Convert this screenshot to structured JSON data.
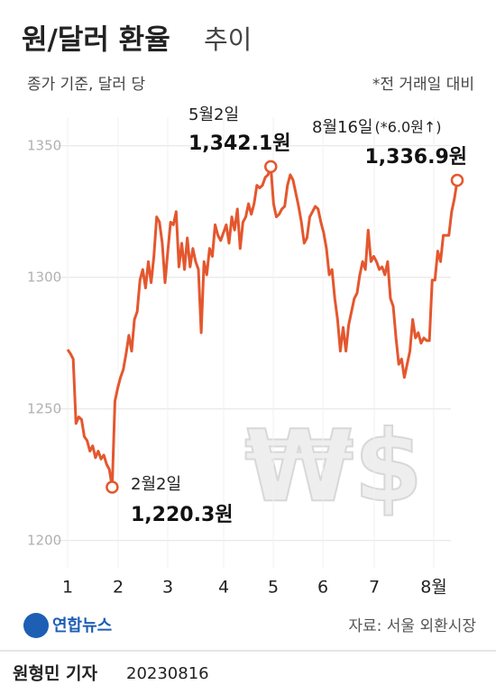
{
  "chart_data": {
    "type": "line",
    "title": "원/달러 환율",
    "title_suffix": "추이",
    "subtitle": "종가 기준, 달러 당",
    "note": "*전 거래일 대비",
    "x_labels": [
      "1",
      "2",
      "3",
      "4",
      "5",
      "6",
      "7",
      "8월"
    ],
    "series": [
      {
        "color": "#e4572e",
        "values": [
          1272.6,
          1271,
          1269,
          1244.5,
          1247,
          1246,
          1239.5,
          1238,
          1234,
          1236,
          1231.5,
          1234,
          1231,
          1232.5,
          1229,
          1227,
          1220.3,
          1253,
          1258,
          1262,
          1265,
          1271,
          1278,
          1272,
          1284,
          1287,
          1299,
          1303,
          1296,
          1306,
          1298,
          1308,
          1323,
          1321,
          1313,
          1298,
          1310,
          1321,
          1320,
          1325,
          1304,
          1313,
          1303,
          1315,
          1304,
          1311,
          1306,
          1303,
          1279,
          1306,
          1301,
          1311,
          1308,
          1320,
          1316,
          1314,
          1317,
          1320,
          1313,
          1323,
          1318,
          1326,
          1311,
          1321,
          1323,
          1328,
          1324,
          1328,
          1335,
          1334,
          1335,
          1338,
          1339,
          1342.1,
          1328,
          1323,
          1324,
          1326,
          1327,
          1335,
          1339,
          1337,
          1332,
          1327,
          1321,
          1313,
          1315,
          1323,
          1325,
          1327,
          1326,
          1321,
          1317,
          1311,
          1301,
          1303,
          1292,
          1284,
          1272,
          1281,
          1272,
          1282,
          1287,
          1292,
          1294,
          1301,
          1306,
          1303,
          1318,
          1306,
          1308,
          1306,
          1303,
          1304,
          1301,
          1306,
          1292,
          1289,
          1277,
          1267,
          1269,
          1262,
          1267,
          1272,
          1284,
          1277,
          1279,
          1275,
          1277,
          1276,
          1276,
          1299,
          1299,
          1310,
          1306,
          1316,
          1316,
          1316,
          1325,
          1330,
          1336.9
        ]
      }
    ],
    "ylim": [
      1190,
      1365
    ],
    "yticks": [
      1200,
      1250,
      1300,
      1350
    ],
    "grid": true,
    "annotations": [
      {
        "date": "2월2일",
        "value": 1220.3,
        "label": "1,220.3원"
      },
      {
        "date": "5월2일",
        "value": 1342.1,
        "label": "1,342.1원"
      },
      {
        "date": "8월16일",
        "change": "(*6.0원↑)",
        "value": 1336.9,
        "label": "1,336.9원"
      }
    ],
    "watermark": "₩$"
  },
  "footer": {
    "logo": "연합뉴스",
    "source": "자료: 서울 외환시장",
    "credit": "원형민 기자",
    "date": "20230816"
  }
}
